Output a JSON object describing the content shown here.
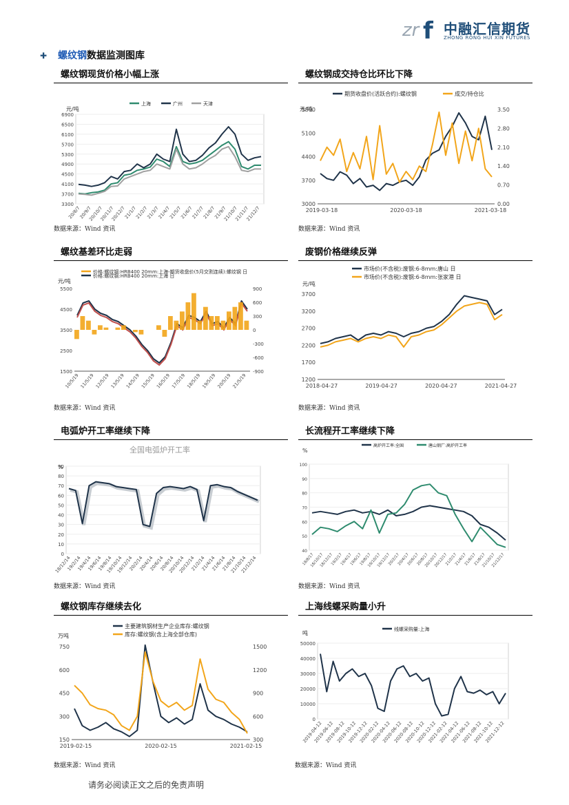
{
  "header": {
    "logo_cn": "中融汇信期货",
    "logo_en": "ZHONG RONG HUI XIN FUTURES",
    "logo_mark": "zrf"
  },
  "section": {
    "title_highlight": "螺纹钢",
    "title_rest": "数据监测图库"
  },
  "footer": "请务必阅读正文之后的免责声明",
  "colors": {
    "navy": "#1f3349",
    "teal": "#2e8b6e",
    "grey": "#a0a0a0",
    "orange": "#f2a51a",
    "red": "#c0504d",
    "accent": "#1f4e79"
  },
  "panels": [
    {
      "title": "螺纹钢现货价格小幅上涨",
      "source": "数据来源：Wind 资讯",
      "chart_data": {
        "type": "line",
        "unit_label": "元/吨",
        "legend": [
          "上海",
          "广州",
          "天津"
        ],
        "y_ticks": [
          "6900",
          "6500",
          "6100",
          "5700",
          "5300",
          "4900",
          "4500",
          "4100",
          "3700",
          "3300"
        ],
        "x_ticks": [
          "20/8/7",
          "20/9/7",
          "20/10/7",
          "20/11/7",
          "20/12/7",
          "21/1/7",
          "21/2/7",
          "21/3/7",
          "21/4/7",
          "21/5/7",
          "21/6/7",
          "21/7/7",
          "21/8/7",
          "21/9/7",
          "21/10/7",
          "21/11/7",
          "21/12/7"
        ],
        "ylim": [
          3300,
          6900
        ],
        "series": [
          {
            "name": "上海",
            "values": [
              3720,
              3700,
              3750,
              3780,
              3850,
              4100,
              4150,
              4450,
              4500,
              4650,
              4700,
              4780,
              5100,
              5000,
              4800,
              5600,
              5000,
              4900,
              4950,
              5050,
              5250,
              5450,
              5650,
              5800,
              5500,
              4800,
              4700,
              4850,
              4850
            ]
          },
          {
            "name": "广州",
            "values": [
              4080,
              4050,
              4000,
              4050,
              4150,
              4400,
              4300,
              4600,
              4650,
              4900,
              4750,
              4900,
              5300,
              5100,
              5000,
              6300,
              5300,
              5000,
              5050,
              5250,
              5550,
              5750,
              6100,
              6400,
              6100,
              5300,
              5050,
              5150,
              5200
            ]
          },
          {
            "name": "天津",
            "values": [
              3700,
              3680,
              3650,
              3720,
              3800,
              4000,
              4020,
              4300,
              4400,
              4500,
              4600,
              4650,
              4900,
              4800,
              4700,
              5500,
              4900,
              4700,
              4750,
              4900,
              5100,
              5250,
              5500,
              5600,
              5200,
              4650,
              4600,
              4700,
              4700
            ]
          }
        ]
      }
    },
    {
      "title": "螺纹钢成交持仓比环比下降",
      "source": "数据来源：Wind 资讯",
      "chart_data": {
        "type": "line",
        "unit_label": "元/吨",
        "legend": [
          "期货收盘价(活跃合约):螺纹钢",
          "成交/持仓比"
        ],
        "y_ticks_left": [
          "5800",
          "5100",
          "4400",
          "3700",
          "3000"
        ],
        "y_ticks_right": [
          "3.50",
          "2.80",
          "2.10",
          "1.40",
          "0.70",
          "0.00"
        ],
        "x_ticks": [
          "2019-03-18",
          "2020-03-18",
          "2021-03-18"
        ],
        "ylim": [
          3000,
          5800
        ],
        "ylim_right": [
          0,
          3.5
        ],
        "series": [
          {
            "name": "期货收盘价(活跃合约):螺纹钢",
            "values": [
              3900,
              3750,
              3700,
              3950,
              3850,
              3600,
              3750,
              3500,
              3550,
              3400,
              3600,
              3550,
              3650,
              3700,
              3550,
              3800,
              4300,
              4500,
              4600,
              5000,
              5300,
              5700,
              5400,
              5000,
              4900,
              5600,
              4600
            ]
          },
          {
            "name": "成交/持仓比",
            "values": [
              1.6,
              2.1,
              1.8,
              2.4,
              1.2,
              1.9,
              1.3,
              2.5,
              0.9,
              2.9,
              1.1,
              1.5,
              0.8,
              1.2,
              0.9,
              1.4,
              1.2,
              2.2,
              3.4,
              1.8,
              3.0,
              1.5,
              2.7,
              1.6,
              2.8,
              1.3,
              1.0
            ]
          }
        ]
      }
    },
    {
      "title": "螺纹基差环比走弱",
      "source": "数据来源：Wind 资讯",
      "chart_data": {
        "type": "line",
        "unit_label": "元/吨",
        "legend": [
          "价格:螺纹钢:HRB400 20mm:上海-期货收盘价(5月交割连续):螺纹钢 日",
          "价格:螺纹钢:HRB400 20mm:上海 日"
        ],
        "y_ticks_left": [
          "5500",
          "4500",
          "3500",
          "2500",
          "1500"
        ],
        "y_ticks_right": [
          "900",
          "600",
          "300",
          "0",
          "-300",
          "-600",
          "-900"
        ],
        "x_ticks": [
          "10/5/19",
          "11/5/19",
          "12/5/19",
          "13/5/19",
          "14/5/19",
          "15/5/19",
          "16/5/19",
          "17/5/19",
          "18/5/19",
          "19/5/19",
          "20/5/19",
          "21/5/19"
        ],
        "ylim": [
          1500,
          5500
        ],
        "ylim_right": [
          -900,
          900
        ],
        "series": [
          {
            "name": "价格:螺纹钢:HRB400 20mm:上海 日",
            "values": [
              4200,
              4800,
              4900,
              4500,
              4300,
              4200,
              4000,
              3900,
              3700,
              3500,
              3200,
              2800,
              2500,
              2100,
              1900,
              2200,
              2900,
              3800,
              3600,
              4200,
              4100,
              3900,
              4400,
              3800,
              3900,
              3600,
              4100,
              3800,
              4900,
              4500
            ]
          },
          {
            "name": "价格:螺纹钢:HRB400 20mm:上海-期货收盘价(5月交割连续):螺纹钢 日",
            "values": [
              -200,
              300,
              200,
              -100,
              100,
              50,
              0,
              50,
              100,
              0,
              -50,
              -100,
              0,
              0,
              100,
              -150,
              300,
              200,
              400,
              600,
              800,
              200,
              500,
              300,
              300,
              200,
              400,
              500,
              600,
              200
            ]
          }
        ]
      }
    },
    {
      "title": "废钢价格继续反弹",
      "source": "数据来源：Wind 资讯",
      "chart_data": {
        "type": "line",
        "unit_label": "元/吨",
        "legend": [
          "市场价(不含税):废钢:6-8mm:唐山 日",
          "市场价(不含税):废钢:6-8mm:张家港 日"
        ],
        "y_ticks": [
          "3700",
          "3200",
          "2700",
          "2200",
          "1700",
          "1200"
        ],
        "x_ticks": [
          "2018-04-27",
          "2019-04-27",
          "2020-04-27",
          "2021-04-27"
        ],
        "ylim": [
          1200,
          3700
        ],
        "series": [
          {
            "name": "市场价(不含税):废钢:6-8mm:唐山 日",
            "values": [
              2250,
              2300,
              2400,
              2450,
              2500,
              2350,
              2500,
              2550,
              2500,
              2600,
              2550,
              2450,
              2550,
              2600,
              2700,
              2750,
              2900,
              3100,
              3400,
              3650,
              3600,
              3550,
              3500,
              3100,
              3250
            ]
          },
          {
            "name": "市场价(不含税):废钢:6-8mm:张家港 日",
            "values": [
              2150,
              2200,
              2300,
              2350,
              2400,
              2300,
              2400,
              2450,
              2400,
              2500,
              2450,
              2150,
              2450,
              2500,
              2600,
              2650,
              2800,
              3000,
              3200,
              3350,
              3400,
              3450,
              3400,
              2950,
              3100
            ]
          }
        ]
      }
    },
    {
      "title": "电弧炉开工率继续下降",
      "source": "数据来源：Wind 资讯",
      "chart_data": {
        "type": "line",
        "title": "全国电弧炉开工率",
        "unit_label": "%",
        "y_ticks": [
          "90",
          "80",
          "70",
          "60",
          "50",
          "40",
          "30",
          "20",
          "10",
          "0"
        ],
        "x_ticks": [
          "18/12/14",
          "19/2/14",
          "19/4/14",
          "19/6/14",
          "19/8/14",
          "19/10/14",
          "19/12/14",
          "20/2/14",
          "20/4/14",
          "20/6/14",
          "20/8/14",
          "20/10/14",
          "20/12/14",
          "21/2/14",
          "21/4/14",
          "21/6/14",
          "21/8/14",
          "21/10/14",
          "21/12/14"
        ],
        "ylim": [
          0,
          90
        ],
        "series": [
          {
            "name": "全国电弧炉开工率",
            "values": [
              67,
              65,
              31,
              70,
              74,
              73,
              72,
              69,
              68,
              67,
              66,
              30,
              28,
              62,
              68,
              69,
              68,
              67,
              69,
              66,
              34,
              70,
              71,
              69,
              68,
              64,
              61,
              58,
              55
            ]
          }
        ]
      }
    },
    {
      "title": "长流程开工率继续下降",
      "source": "数据来源：Wind 资讯",
      "chart_data": {
        "type": "line",
        "unit_label": "%",
        "legend": [
          "高炉开工率:全国",
          "唐山钢厂:高炉开工率"
        ],
        "y_ticks": [
          "100",
          "90",
          "80",
          "70",
          "60",
          "50",
          "40"
        ],
        "x_ticks": [
          "18/8/17",
          "18/10/17",
          "18/12/17",
          "19/2/17",
          "19/4/17",
          "19/6/17",
          "19/8/17",
          "19/10/17",
          "19/12/17",
          "20/2/17",
          "20/4/17",
          "20/6/17",
          "20/8/17",
          "20/10/17",
          "20/12/17",
          "21/2/17",
          "21/4/17",
          "21/6/17",
          "21/8/17",
          "21/10/17",
          "21/12/17"
        ],
        "ylim": [
          40,
          100
        ],
        "series": [
          {
            "name": "高炉开工率:全国",
            "values": [
              66,
              67,
              66,
              65,
              67,
              68,
              66,
              67,
              65,
              68,
              64,
              65,
              67,
              70,
              71,
              70,
              69,
              68,
              67,
              64,
              58,
              56,
              52,
              47
            ]
          },
          {
            "name": "唐山钢厂:高炉开工率",
            "values": [
              51,
              56,
              55,
              53,
              57,
              60,
              55,
              68,
              52,
              65,
              66,
              72,
              82,
              85,
              86,
              80,
              78,
              65,
              55,
              46,
              56,
              50,
              44,
              42
            ]
          }
        ]
      }
    },
    {
      "title": "螺纹钢库存继续去化",
      "source": "数据来源：Wind 资讯",
      "chart_data": {
        "type": "line",
        "unit_label": "万吨",
        "legend": [
          "主要建筑钢材生产企业库存:螺纹钢",
          "库存:螺纹钢(含上海全部仓库)"
        ],
        "y_ticks_left": [
          "750",
          "600",
          "450",
          "300",
          "150"
        ],
        "y_ticks_right": [
          "1500",
          "1200",
          "900",
          "600",
          "300"
        ],
        "x_ticks": [
          "2019-02-15",
          "2020-02-15",
          "2021-02-15"
        ],
        "ylim": [
          150,
          750
        ],
        "ylim_right": [
          300,
          1500
        ],
        "series": [
          {
            "name": "主要建筑钢材生产企业库存:螺纹钢",
            "values": [
              350,
              240,
              210,
              230,
              260,
              220,
              200,
              170,
              210,
              760,
              520,
              300,
              260,
              290,
              250,
              280,
              510,
              340,
              300,
              280,
              250,
              230,
              200
            ]
          },
          {
            "name": "库存:螺纹钢(含上海全部仓库)",
            "values": [
              1000,
              900,
              750,
              700,
              680,
              620,
              480,
              420,
              600,
              1430,
              1050,
              800,
              720,
              780,
              680,
              740,
              1340,
              950,
              820,
              780,
              650,
              560,
              380
            ]
          }
        ]
      }
    },
    {
      "title": "上海线螺采购量小升",
      "source": "数据来源：Wind 资讯",
      "chart_data": {
        "type": "line",
        "unit_label": "吨",
        "legend": [
          "线螺采购量:上海"
        ],
        "y_ticks": [
          "50000",
          "40000",
          "30000",
          "20000",
          "10000",
          "0"
        ],
        "x_ticks": [
          "2019-04-12",
          "2019-06-12",
          "2019-08-12",
          "2019-10-12",
          "2019-12-12",
          "2020-02-12",
          "2020-04-12",
          "2020-06-12",
          "2020-08-12",
          "2020-10-12",
          "2020-12-12",
          "2021-02-12",
          "2021-04-12",
          "2021-06-12",
          "2021-08-12",
          "2021-10-12",
          "2021-12-12"
        ],
        "ylim": [
          0,
          50000
        ],
        "series": [
          {
            "name": "线螺采购量:上海",
            "values": [
              43000,
              18000,
              38000,
              25000,
              30000,
              33000,
              28000,
              30000,
              22000,
              7000,
              5000,
              25000,
              33000,
              35000,
              28000,
              30000,
              25000,
              27000,
              10000,
              2000,
              3000,
              20000,
              28000,
              18000,
              17000,
              19000,
              16000,
              18000,
              10000,
              17000
            ]
          }
        ]
      }
    }
  ]
}
